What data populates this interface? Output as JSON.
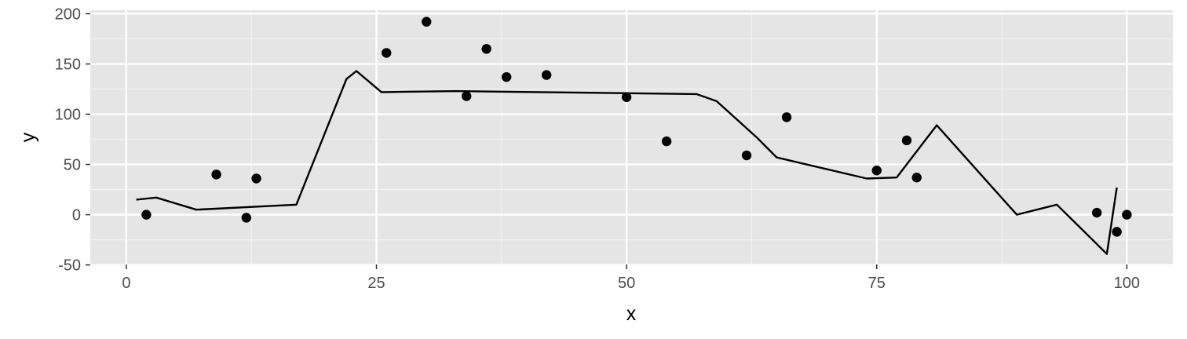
{
  "colors": {
    "panel_background": "#e5e5e5",
    "grid_major": "#ffffff",
    "grid_minor": "#f2f2f2",
    "data": "#000000",
    "tick_text": "#4d4d4d",
    "tick_mark": "#333333"
  },
  "chart_data": {
    "type": "scatter",
    "title": "",
    "xlabel": "x",
    "ylabel": "y",
    "xlim": [
      -3.6,
      104.6
    ],
    "ylim": [
      -49.5,
      203.5
    ],
    "grid": true,
    "x_ticks": [
      0,
      25,
      50,
      75,
      100
    ],
    "x_tick_labels": [
      "0",
      "25",
      "50",
      "75",
      "100"
    ],
    "y_ticks": [
      -50,
      0,
      50,
      100,
      150,
      200
    ],
    "y_tick_labels": [
      "-50",
      "0",
      "50",
      "100",
      "150",
      "200"
    ],
    "points": [
      {
        "x": 2,
        "y": 0
      },
      {
        "x": 9,
        "y": 40
      },
      {
        "x": 12,
        "y": -3
      },
      {
        "x": 13,
        "y": 36
      },
      {
        "x": 26,
        "y": 161
      },
      {
        "x": 30,
        "y": 192
      },
      {
        "x": 34,
        "y": 118
      },
      {
        "x": 36,
        "y": 165
      },
      {
        "x": 38,
        "y": 137
      },
      {
        "x": 42,
        "y": 139
      },
      {
        "x": 50,
        "y": 117
      },
      {
        "x": 54,
        "y": 73
      },
      {
        "x": 62,
        "y": 59
      },
      {
        "x": 66,
        "y": 97
      },
      {
        "x": 75,
        "y": 44
      },
      {
        "x": 78,
        "y": 74
      },
      {
        "x": 79,
        "y": 37
      },
      {
        "x": 97,
        "y": 2
      },
      {
        "x": 99,
        "y": -17
      },
      {
        "x": 100,
        "y": 0
      }
    ],
    "line": [
      {
        "x": 1,
        "y": 15
      },
      {
        "x": 3,
        "y": 17
      },
      {
        "x": 7,
        "y": 5
      },
      {
        "x": 17,
        "y": 10
      },
      {
        "x": 22,
        "y": 135
      },
      {
        "x": 23,
        "y": 143
      },
      {
        "x": 25.5,
        "y": 122
      },
      {
        "x": 33,
        "y": 123
      },
      {
        "x": 57,
        "y": 120
      },
      {
        "x": 59,
        "y": 113
      },
      {
        "x": 63,
        "y": 77
      },
      {
        "x": 65,
        "y": 57
      },
      {
        "x": 74,
        "y": 36
      },
      {
        "x": 77,
        "y": 37
      },
      {
        "x": 81,
        "y": 89
      },
      {
        "x": 89,
        "y": 0
      },
      {
        "x": 93,
        "y": 10
      },
      {
        "x": 98,
        "y": -39
      },
      {
        "x": 99,
        "y": 27
      }
    ]
  }
}
